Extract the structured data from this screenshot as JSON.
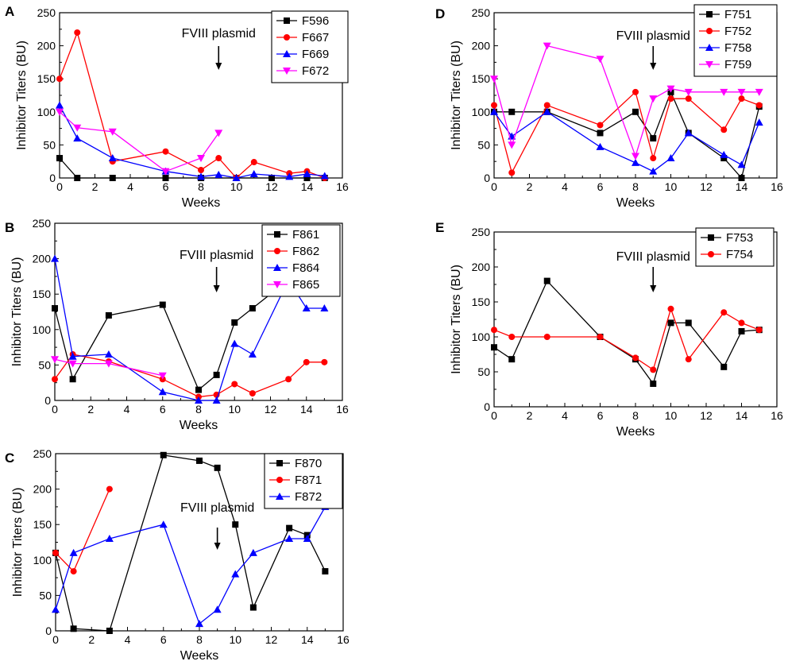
{
  "figure": {
    "panel_count": 5
  },
  "chart_data": [
    {
      "panel": "A",
      "type": "line",
      "xlabel": "Weeks",
      "ylabel": "Inhibitor Titers (BU)",
      "xlim": [
        0,
        16
      ],
      "ylim": [
        0,
        250
      ],
      "xticks": [
        0,
        2,
        4,
        6,
        8,
        10,
        12,
        14,
        16
      ],
      "yticks": [
        0,
        50,
        100,
        150,
        200,
        250
      ],
      "annotation": {
        "text": "FVIII plasmid",
        "x": 9
      },
      "legend_position": "top-right",
      "series": [
        {
          "name": "F596",
          "color": "#000000",
          "marker": "square",
          "points": [
            [
              0,
              30
            ],
            [
              1,
              0
            ],
            [
              3,
              0
            ],
            [
              6,
              0
            ],
            [
              8,
              0
            ],
            [
              10,
              0
            ],
            [
              12,
              0
            ],
            [
              14,
              0
            ],
            [
              15,
              0
            ]
          ]
        },
        {
          "name": "F667",
          "color": "#ff0000",
          "marker": "circle",
          "points": [
            [
              0,
              150
            ],
            [
              1,
              220
            ],
            [
              3,
              25
            ],
            [
              6,
              40
            ],
            [
              8,
              12
            ],
            [
              9,
              30
            ],
            [
              10,
              0
            ],
            [
              11,
              24
            ],
            [
              13,
              7
            ],
            [
              14,
              10
            ],
            [
              15,
              0
            ]
          ]
        },
        {
          "name": "F669",
          "color": "#0000ff",
          "marker": "triangle-up",
          "points": [
            [
              0,
              110
            ],
            [
              1,
              60
            ],
            [
              3,
              30
            ],
            [
              6,
              10
            ],
            [
              8,
              2
            ],
            [
              9,
              5
            ],
            [
              10,
              0
            ],
            [
              11,
              6
            ],
            [
              13,
              2
            ],
            [
              14,
              6
            ],
            [
              15,
              3
            ]
          ]
        },
        {
          "name": "F672",
          "color": "#ff00ff",
          "marker": "triangle-down",
          "points": [
            [
              0,
              100
            ],
            [
              1,
              76
            ],
            [
              3,
              70
            ],
            [
              6,
              10
            ],
            [
              8,
              30
            ],
            [
              9,
              68
            ]
          ]
        }
      ]
    },
    {
      "panel": "B",
      "type": "line",
      "xlabel": "Weeks",
      "ylabel": "Inhibitor Titers (BU)",
      "xlim": [
        0,
        16
      ],
      "ylim": [
        0,
        250
      ],
      "xticks": [
        0,
        2,
        4,
        6,
        8,
        10,
        12,
        14,
        16
      ],
      "yticks": [
        0,
        50,
        100,
        150,
        200,
        250
      ],
      "annotation": {
        "text": "FVIII plasmid",
        "x": 9
      },
      "legend_position": "top-right",
      "series": [
        {
          "name": "F861",
          "color": "#000000",
          "marker": "square",
          "points": [
            [
              0,
              130
            ],
            [
              1,
              30
            ],
            [
              3,
              120
            ],
            [
              6,
              135
            ],
            [
              8,
              15
            ],
            [
              9,
              36
            ],
            [
              10,
              110
            ],
            [
              11,
              130
            ],
            [
              13,
              170
            ],
            [
              14,
              170
            ],
            [
              15,
              160
            ]
          ]
        },
        {
          "name": "F862",
          "color": "#ff0000",
          "marker": "circle",
          "points": [
            [
              0,
              30
            ],
            [
              1,
              65
            ],
            [
              3,
              55
            ],
            [
              6,
              30
            ],
            [
              8,
              5
            ],
            [
              9,
              8
            ],
            [
              10,
              23
            ],
            [
              11,
              10
            ],
            [
              13,
              30
            ],
            [
              14,
              54
            ],
            [
              15,
              54
            ]
          ]
        },
        {
          "name": "F864",
          "color": "#0000ff",
          "marker": "triangle-up",
          "points": [
            [
              0,
              200
            ],
            [
              1,
              62
            ],
            [
              3,
              65
            ],
            [
              6,
              12
            ],
            [
              8,
              0
            ],
            [
              9,
              0
            ],
            [
              10,
              80
            ],
            [
              11,
              65
            ],
            [
              13,
              170
            ],
            [
              14,
              130
            ],
            [
              15,
              130
            ]
          ]
        },
        {
          "name": "F865",
          "color": "#ff00ff",
          "marker": "triangle-down",
          "points": [
            [
              0,
              58
            ],
            [
              1,
              52
            ],
            [
              3,
              52
            ],
            [
              6,
              35
            ]
          ]
        }
      ]
    },
    {
      "panel": "C",
      "type": "line",
      "xlabel": "Weeks",
      "ylabel": "Inhibitor Titers (BU)",
      "xlim": [
        0,
        16
      ],
      "ylim": [
        0,
        250
      ],
      "xticks": [
        0,
        2,
        4,
        6,
        8,
        10,
        12,
        14,
        16
      ],
      "yticks": [
        0,
        50,
        100,
        150,
        200,
        250
      ],
      "annotation": {
        "text": "FVIII plasmid",
        "x": 9
      },
      "legend_position": "top-right",
      "series": [
        {
          "name": "F870",
          "color": "#000000",
          "marker": "square",
          "points": [
            [
              0,
              110
            ],
            [
              1,
              3
            ],
            [
              3,
              0
            ],
            [
              6,
              248
            ],
            [
              8,
              240
            ],
            [
              9,
              230
            ],
            [
              10,
              150
            ],
            [
              11,
              33
            ],
            [
              13,
              145
            ],
            [
              14,
              135
            ],
            [
              15,
              84
            ]
          ]
        },
        {
          "name": "F871",
          "color": "#ff0000",
          "marker": "circle",
          "points": [
            [
              0,
              110
            ],
            [
              1,
              84
            ],
            [
              3,
              200
            ]
          ]
        },
        {
          "name": "F872",
          "color": "#0000ff",
          "marker": "triangle-up",
          "points": [
            [
              0,
              30
            ],
            [
              1,
              110
            ],
            [
              3,
              130
            ],
            [
              6,
              150
            ],
            [
              8,
              10
            ],
            [
              9,
              30
            ],
            [
              10,
              80
            ],
            [
              11,
              110
            ],
            [
              13,
              130
            ],
            [
              14,
              130
            ],
            [
              15,
              175
            ]
          ]
        }
      ]
    },
    {
      "panel": "D",
      "type": "line",
      "xlabel": "Weeks",
      "ylabel": "Inhibitor Titers (BU)",
      "xlim": [
        0,
        16
      ],
      "ylim": [
        0,
        250
      ],
      "xticks": [
        0,
        2,
        4,
        6,
        8,
        10,
        12,
        14,
        16
      ],
      "yticks": [
        0,
        50,
        100,
        150,
        200,
        250
      ],
      "annotation": {
        "text": "FVIII plasmid",
        "x": 9
      },
      "legend_position": "top-right",
      "series": [
        {
          "name": "F751",
          "color": "#000000",
          "marker": "square",
          "points": [
            [
              0,
              100
            ],
            [
              1,
              100
            ],
            [
              3,
              100
            ],
            [
              6,
              68
            ],
            [
              8,
              100
            ],
            [
              9,
              60
            ],
            [
              10,
              130
            ],
            [
              11,
              68
            ],
            [
              13,
              30
            ],
            [
              14,
              0
            ],
            [
              15,
              108
            ]
          ]
        },
        {
          "name": "F752",
          "color": "#ff0000",
          "marker": "circle",
          "points": [
            [
              0,
              110
            ],
            [
              1,
              8
            ],
            [
              3,
              110
            ],
            [
              6,
              80
            ],
            [
              8,
              130
            ],
            [
              9,
              30
            ],
            [
              10,
              120
            ],
            [
              11,
              120
            ],
            [
              13,
              73
            ],
            [
              14,
              120
            ],
            [
              15,
              110
            ]
          ]
        },
        {
          "name": "F758",
          "color": "#0000ff",
          "marker": "triangle-up",
          "points": [
            [
              0,
              100
            ],
            [
              1,
              63
            ],
            [
              3,
              100
            ],
            [
              6,
              47
            ],
            [
              8,
              23
            ],
            [
              9,
              10
            ],
            [
              10,
              30
            ],
            [
              11,
              68
            ],
            [
              13,
              35
            ],
            [
              14,
              20
            ],
            [
              15,
              84
            ]
          ]
        },
        {
          "name": "F759",
          "color": "#ff00ff",
          "marker": "triangle-down",
          "points": [
            [
              0,
              150
            ],
            [
              1,
              50
            ],
            [
              3,
              200
            ],
            [
              6,
              180
            ],
            [
              8,
              33
            ],
            [
              9,
              120
            ],
            [
              10,
              135
            ],
            [
              11,
              130
            ],
            [
              13,
              130
            ],
            [
              14,
              130
            ],
            [
              15,
              130
            ]
          ]
        }
      ]
    },
    {
      "panel": "E",
      "type": "line",
      "xlabel": "Weeks",
      "ylabel": "Inhibitor Titers (BU)",
      "xlim": [
        0,
        16
      ],
      "ylim": [
        0,
        250
      ],
      "xticks": [
        0,
        2,
        4,
        6,
        8,
        10,
        12,
        14,
        16
      ],
      "yticks": [
        0,
        50,
        100,
        150,
        200,
        250
      ],
      "annotation": {
        "text": "FVIII plasmid",
        "x": 9
      },
      "legend_position": "top-right",
      "series": [
        {
          "name": "F753",
          "color": "#000000",
          "marker": "square",
          "points": [
            [
              0,
              85
            ],
            [
              1,
              68
            ],
            [
              3,
              180
            ],
            [
              6,
              100
            ],
            [
              8,
              68
            ],
            [
              9,
              33
            ],
            [
              10,
              120
            ],
            [
              11,
              120
            ],
            [
              13,
              57
            ],
            [
              14,
              108
            ],
            [
              15,
              110
            ]
          ]
        },
        {
          "name": "F754",
          "color": "#ff0000",
          "marker": "circle",
          "points": [
            [
              0,
              110
            ],
            [
              1,
              100
            ],
            [
              3,
              100
            ],
            [
              6,
              100
            ],
            [
              8,
              70
            ],
            [
              9,
              53
            ],
            [
              10,
              140
            ],
            [
              11,
              68
            ],
            [
              13,
              135
            ],
            [
              14,
              120
            ],
            [
              15,
              110
            ]
          ]
        }
      ]
    }
  ]
}
